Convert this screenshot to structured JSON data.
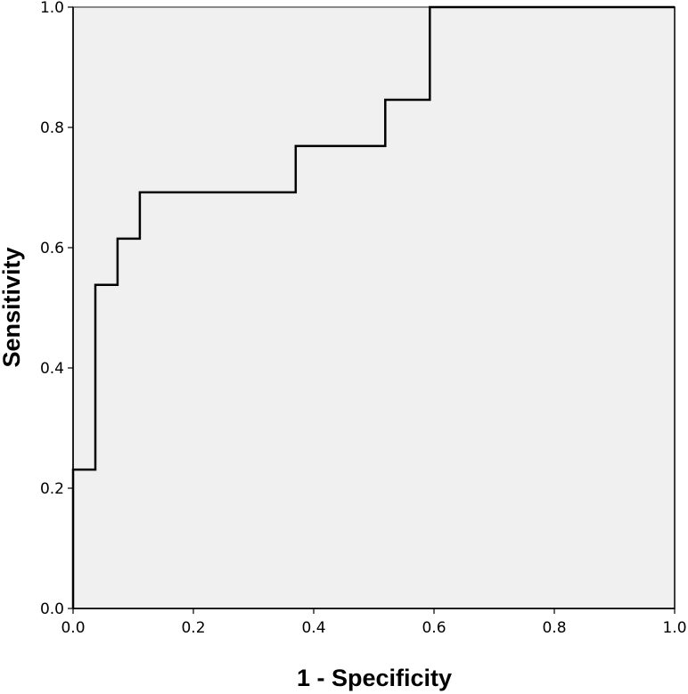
{
  "chart_data": {
    "type": "line",
    "title": "",
    "xlabel": "1 - Specificity",
    "ylabel": "Sensitivity",
    "xlim": [
      0.0,
      1.0
    ],
    "ylim": [
      0.0,
      1.0
    ],
    "x_ticks": [
      "0.0",
      "0.2",
      "0.4",
      "0.6",
      "0.8",
      "1.0"
    ],
    "y_ticks": [
      "0.0",
      "0.2",
      "0.4",
      "0.6",
      "0.8",
      "1.0"
    ],
    "grid": false,
    "legend": "none",
    "step": true,
    "series": [
      {
        "x": [
          0.0,
          0.0,
          0.037,
          0.037,
          0.074,
          0.074,
          0.111,
          0.111,
          0.37,
          0.37,
          0.519,
          0.519,
          0.593,
          0.593,
          1.0
        ],
        "y": [
          0.0,
          0.231,
          0.231,
          0.538,
          0.538,
          0.615,
          0.615,
          0.692,
          0.692,
          0.769,
          0.769,
          0.846,
          0.846,
          1.0,
          1.0
        ]
      }
    ],
    "colors": {
      "plot_background": "#f0f0f0",
      "curve": "#000000",
      "reference_line": "#888888"
    }
  }
}
